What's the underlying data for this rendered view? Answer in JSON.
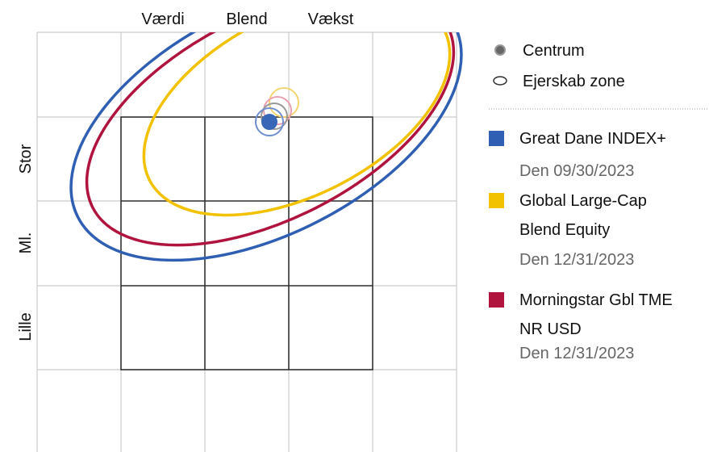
{
  "columns": [
    "Værdi",
    "Blend",
    "Vækst"
  ],
  "rows": [
    "Stor",
    "Ml.",
    "Lille"
  ],
  "legend": {
    "markers": [
      "Centrum",
      "Ejerskab zone"
    ],
    "entries": [
      {
        "lines": [
          "Great Dane INDEX+"
        ],
        "date": "Den 09/30/2023"
      },
      {
        "lines": [
          "Global Large-Cap",
          "Blend Equity"
        ],
        "date": "Den 12/31/2023"
      },
      {
        "lines": [
          "Morningstar Gbl TME",
          "NR USD"
        ],
        "date": "Den 12/31/2023"
      }
    ]
  }
}
